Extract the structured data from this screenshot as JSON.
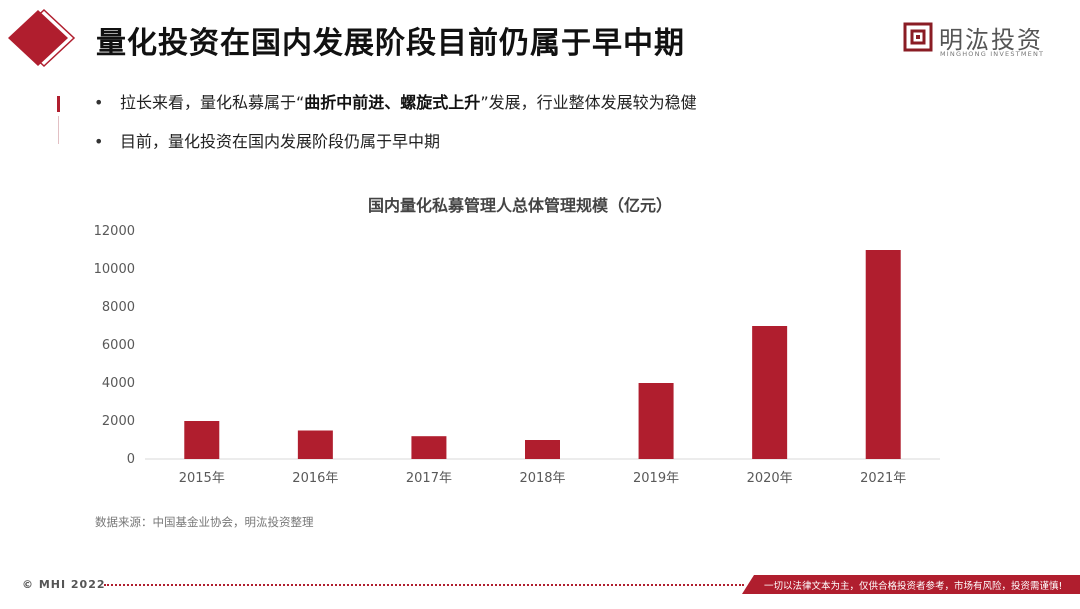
{
  "header": {
    "title": "量化投资在国内发展阶段目前仍属于早中期",
    "brand_name": "明汯投资",
    "brand_sub": "MINGHONG INVESTMENT"
  },
  "bullets": [
    {
      "before": "拉长来看，量化私募属于“",
      "bold": "曲折中前进、螺旋式上升",
      "after": "”发展，行业整体发展较为稳健"
    },
    {
      "before": "目前，量化投资在国内发展阶段仍属于早中期",
      "bold": "",
      "after": ""
    }
  ],
  "chart_data": {
    "type": "bar",
    "title": "国内量化私募管理人总体管理规模（亿元）",
    "categories": [
      "2015年",
      "2016年",
      "2017年",
      "2018年",
      "2019年",
      "2020年",
      "2021年"
    ],
    "values": [
      2000,
      1500,
      1200,
      1000,
      4000,
      7000,
      11000
    ],
    "ylim": [
      0,
      12000
    ],
    "yticks": [
      0,
      2000,
      4000,
      6000,
      8000,
      10000,
      12000
    ],
    "xlabel": "",
    "ylabel": "",
    "bar_color": "#b01e2e",
    "grid": false,
    "legend": "none"
  },
  "source": "数据来源：中国基金业协会，明汯投资整理",
  "footer": {
    "left": "© MHI 2022",
    "right": "一切以法律文本为主，仅供合格投资者参考，市场有风险，投资需谨慎!"
  },
  "colors": {
    "accent": "#b01e2e"
  }
}
